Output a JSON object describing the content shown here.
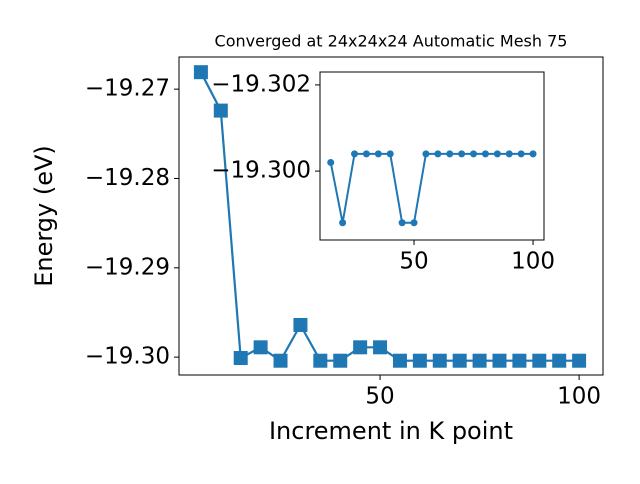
{
  "chart_data": [
    {
      "type": "line",
      "title": "Converged at 24x24x24 Automatic Mesh 75",
      "x_label": "Increment in K point",
      "y_label": "Energy (eV)",
      "x": [
        5,
        10,
        15,
        20,
        25,
        30,
        35,
        40,
        45,
        50,
        55,
        60,
        65,
        70,
        75,
        80,
        85,
        90,
        95,
        100
      ],
      "series": [
        {
          "color": "#1f77b4",
          "marker": "square",
          "values": [
            -19.2681,
            -19.2724,
            -19.3001,
            -19.2989,
            -19.3004,
            -19.2964,
            -19.3004,
            -19.3004,
            -19.2989,
            -19.2989,
            -19.3004,
            -19.3004,
            -19.3004,
            -19.3004,
            -19.3004,
            -19.3004,
            -19.3004,
            -19.3004,
            -19.3004,
            -19.3004
          ]
        }
      ],
      "xlim": [
        -0.5,
        106
      ],
      "xticks": [
        50,
        100
      ],
      "ylim": [
        -19.302,
        -19.2664
      ],
      "yticks": [
        {
          "value": -19.27,
          "label": "−19.27"
        },
        {
          "value": -19.28,
          "label": "−19.28"
        },
        {
          "value": -19.29,
          "label": "−19.29"
        },
        {
          "value": -19.3,
          "label": "−19.30"
        }
      ]
    },
    {
      "type": "line",
      "x": [
        15,
        20,
        25,
        30,
        35,
        40,
        45,
        50,
        55,
        60,
        65,
        70,
        75,
        80,
        85,
        90,
        95,
        100
      ],
      "series": [
        {
          "color": "#1f77b4",
          "marker": "circle",
          "values": [
            -19.3002,
            -19.2988,
            -19.3004,
            -19.3004,
            -19.3004,
            -19.3004,
            -19.2988,
            -19.2988,
            -19.3004,
            -19.3004,
            -19.3004,
            -19.3004,
            -19.3004,
            -19.3004,
            -19.3004,
            -19.3004,
            -19.3004,
            -19.3004
          ]
        }
      ],
      "xlim": [
        10.5,
        104.6
      ],
      "xticks": [
        50,
        100
      ],
      "ylim": [
        -19.2984,
        -19.3023
      ],
      "yticks": [
        {
          "value": -19.302,
          "label": "−19.302"
        },
        {
          "value": -19.3,
          "label": "−19.300"
        }
      ]
    }
  ]
}
